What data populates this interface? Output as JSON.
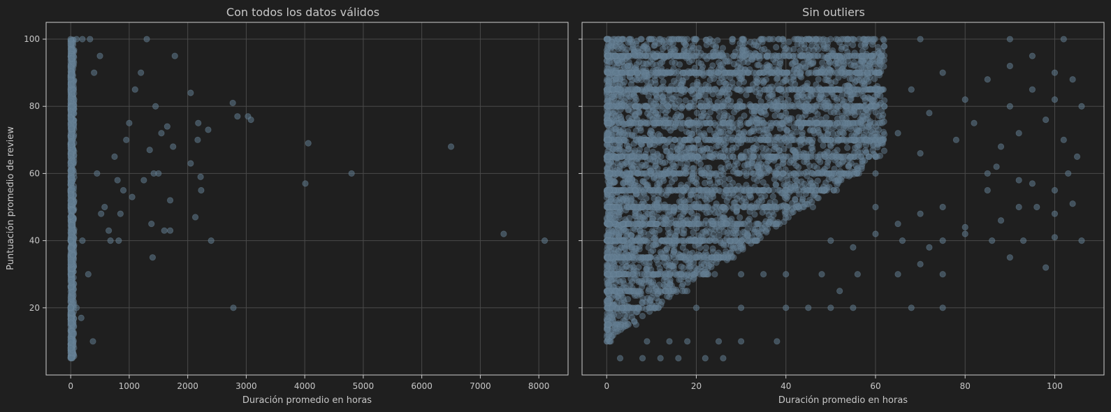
{
  "figure": {
    "background": "#1f1f1f",
    "text_color": "#c8c8c8",
    "point_color": "#5f7a8e",
    "grid_color": "#4a4a4a",
    "frame_color": "#cfcfcf"
  },
  "shared": {
    "ylabel": "Puntuación promedio de review"
  },
  "chart_data": [
    {
      "type": "scatter",
      "title": "Con todos los datos válidos",
      "xlabel": "Duración promedio en horas",
      "ylabel": "Puntuación promedio de review",
      "xlim": [
        -420,
        8500
      ],
      "ylim": [
        0,
        105
      ],
      "xticks": [
        0,
        1000,
        2000,
        3000,
        4000,
        5000,
        6000,
        7000,
        8000
      ],
      "yticks": [
        20,
        40,
        60,
        80,
        100
      ],
      "grid": true,
      "dense_band": {
        "x_range": [
          0,
          60
        ],
        "y_range": [
          5,
          100
        ]
      },
      "points": [
        [
          0,
          5
        ],
        [
          0,
          8
        ],
        [
          0,
          10
        ],
        [
          0,
          20
        ],
        [
          0,
          30
        ],
        [
          0,
          40
        ],
        [
          0,
          100
        ],
        [
          20,
          5
        ],
        [
          100,
          20
        ],
        [
          180,
          17
        ],
        [
          200,
          40
        ],
        [
          300,
          30
        ],
        [
          380,
          10
        ],
        [
          330,
          100
        ],
        [
          200,
          100
        ],
        [
          100,
          100
        ],
        [
          400,
          90
        ],
        [
          500,
          95
        ],
        [
          450,
          60
        ],
        [
          520,
          48
        ],
        [
          580,
          50
        ],
        [
          650,
          43
        ],
        [
          680,
          40
        ],
        [
          750,
          65
        ],
        [
          800,
          58
        ],
        [
          820,
          40
        ],
        [
          850,
          48
        ],
        [
          900,
          55
        ],
        [
          950,
          70
        ],
        [
          1000,
          75
        ],
        [
          1050,
          53
        ],
        [
          1100,
          85
        ],
        [
          1200,
          90
        ],
        [
          1250,
          58
        ],
        [
          1300,
          100
        ],
        [
          1350,
          67
        ],
        [
          1380,
          45
        ],
        [
          1400,
          35
        ],
        [
          1420,
          60
        ],
        [
          1450,
          80
        ],
        [
          1500,
          60
        ],
        [
          1550,
          72
        ],
        [
          1600,
          43
        ],
        [
          1650,
          74
        ],
        [
          1700,
          43
        ],
        [
          1700,
          52
        ],
        [
          1750,
          68
        ],
        [
          1780,
          95
        ],
        [
          2050,
          84
        ],
        [
          2050,
          63
        ],
        [
          2130,
          47
        ],
        [
          2170,
          70
        ],
        [
          2180,
          75
        ],
        [
          2220,
          59
        ],
        [
          2230,
          55
        ],
        [
          2350,
          73
        ],
        [
          2400,
          40
        ],
        [
          2770,
          81
        ],
        [
          2780,
          20
        ],
        [
          2850,
          77
        ],
        [
          3030,
          77
        ],
        [
          3080,
          76
        ],
        [
          4010,
          57
        ],
        [
          4060,
          69
        ],
        [
          4800,
          60
        ],
        [
          6500,
          68
        ],
        [
          7400,
          42
        ],
        [
          8100,
          40
        ]
      ]
    },
    {
      "type": "scatter",
      "title": "Sin outliers",
      "xlabel": "Duración promedio en horas",
      "xlim": [
        -5.5,
        111
      ],
      "ylim": [
        0,
        105
      ],
      "xticks": [
        0,
        20,
        40,
        60,
        80,
        100
      ],
      "yticks": [
        20,
        40,
        60,
        80,
        100
      ],
      "grid": true,
      "dense_band": {
        "x_range": [
          0,
          55
        ],
        "y_range": [
          5,
          100
        ]
      },
      "points": [
        [
          0,
          100
        ],
        [
          5,
          100
        ],
        [
          10,
          100
        ],
        [
          15,
          100
        ],
        [
          20,
          100
        ],
        [
          28,
          100
        ],
        [
          35,
          100
        ],
        [
          45,
          100
        ],
        [
          55,
          100
        ],
        [
          70,
          100
        ],
        [
          90,
          100
        ],
        [
          102,
          100
        ],
        [
          40,
          78
        ],
        [
          45,
          82
        ],
        [
          50,
          70
        ],
        [
          55,
          75
        ],
        [
          58,
          88
        ],
        [
          60,
          60
        ],
        [
          62,
          80
        ],
        [
          65,
          72
        ],
        [
          68,
          85
        ],
        [
          70,
          66
        ],
        [
          72,
          78
        ],
        [
          75,
          90
        ],
        [
          78,
          70
        ],
        [
          80,
          82
        ],
        [
          82,
          75
        ],
        [
          85,
          88
        ],
        [
          88,
          68
        ],
        [
          90,
          80
        ],
        [
          92,
          72
        ],
        [
          95,
          85
        ],
        [
          98,
          76
        ],
        [
          100,
          82
        ],
        [
          102,
          70
        ],
        [
          104,
          88
        ],
        [
          106,
          80
        ],
        [
          90,
          92
        ],
        [
          95,
          95
        ],
        [
          100,
          90
        ],
        [
          60,
          50
        ],
        [
          65,
          45
        ],
        [
          70,
          48
        ],
        [
          75,
          50
        ],
        [
          80,
          44
        ],
        [
          85,
          55
        ],
        [
          88,
          46
        ],
        [
          92,
          50
        ],
        [
          96,
          50
        ],
        [
          100,
          48
        ],
        [
          104,
          51
        ],
        [
          50,
          40
        ],
        [
          55,
          38
        ],
        [
          60,
          42
        ],
        [
          66,
          40
        ],
        [
          72,
          38
        ],
        [
          75,
          40
        ],
        [
          80,
          42
        ],
        [
          86,
          40
        ],
        [
          93,
          40
        ],
        [
          100,
          41
        ],
        [
          106,
          40
        ],
        [
          20,
          20
        ],
        [
          30,
          20
        ],
        [
          40,
          20
        ],
        [
          45,
          20
        ],
        [
          50,
          20
        ],
        [
          55,
          20
        ],
        [
          68,
          20
        ],
        [
          75,
          20
        ],
        [
          30,
          30
        ],
        [
          35,
          30
        ],
        [
          40,
          30
        ],
        [
          48,
          30
        ],
        [
          52,
          25
        ],
        [
          56,
          30
        ],
        [
          65,
          30
        ],
        [
          70,
          33
        ],
        [
          75,
          30
        ],
        [
          90,
          35
        ],
        [
          98,
          32
        ],
        [
          85,
          60
        ],
        [
          95,
          57
        ],
        [
          105,
          65
        ],
        [
          100,
          55
        ],
        [
          103,
          60
        ],
        [
          87,
          62
        ],
        [
          92,
          58
        ],
        [
          3,
          5
        ],
        [
          8,
          5
        ],
        [
          12,
          5
        ],
        [
          16,
          5
        ],
        [
          22,
          5
        ],
        [
          26,
          5
        ],
        [
          9,
          10
        ],
        [
          14,
          10
        ],
        [
          18,
          10
        ],
        [
          25,
          10
        ],
        [
          30,
          10
        ],
        [
          38,
          10
        ]
      ]
    }
  ]
}
